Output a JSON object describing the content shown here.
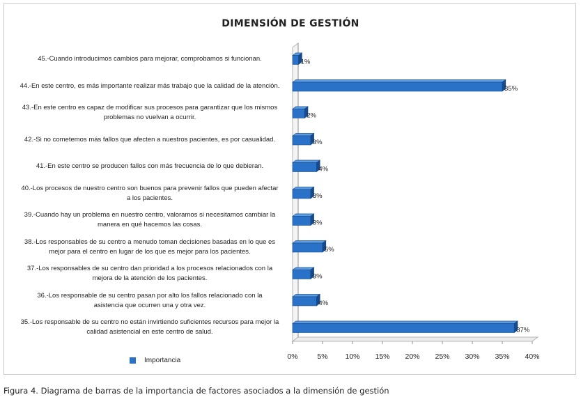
{
  "caption": "Figura 4. Diagrama de barras de la importancia de factores asociados a la dimensión de gestión",
  "chart_data": {
    "type": "bar",
    "orientation": "horizontal",
    "title": "DIMENSIÓN DE GESTIÓN",
    "categories": [
      "45.-Cuando introducimos cambios para mejorar, comprobamos si funcionan.",
      "44.-En este centro, es más importante realizar más trabajo que la calidad de la atención.",
      "43.-En este centro es capaz de modificar sus procesos para garantizar que los mismos problemas no vuelvan a ocurrir.",
      "42.-Si no cometemos más fallos que afecten a nuestros pacientes, es por casualidad.",
      "41.-En este centro se producen fallos con más frecuencia de lo que debieran.",
      "40.-Los procesos de nuestro centro son buenos para prevenir fallos que pueden afectar a los pacientes.",
      "39.-Cuando hay un problema en nuestro centro, valoramos si necesitamos cambiar la manera en qué hacemos las cosas.",
      "38.-Los responsables de su centro a menudo toman decisiones basadas en lo que es mejor para el centro en lugar de los que es mejor para los pacientes.",
      "37.-Los responsables de su centro dan prioridad a los procesos relacionados con la mejora de la atención de los pacientes.",
      "36.-Los responsable de su centro pasan por alto los fallos relacionado con la asistencia que ocurren una y otra vez.",
      "35.-Los responsable de su centro no están invirtiendo suficientes recursos para mejor la calidad asistencial en este centro de salud."
    ],
    "category_lines": [
      [
        "45.-Cuando introducimos cambios para mejorar, comprobamos si funcionan."
      ],
      [
        "44.-En este centro, es más importante realizar más trabajo que la calidad de la atención."
      ],
      [
        "43.-En este centro es capaz de modificar sus procesos para garantizar que los mismos",
        "problemas no vuelvan a ocurrir."
      ],
      [
        "42.-Si no cometemos más fallos que afecten a nuestros pacientes, es por casualidad."
      ],
      [
        "41.-En este centro se producen fallos con más frecuencia de lo que debieran."
      ],
      [
        "40.-Los procesos de nuestro centro son buenos para prevenir fallos que pueden afectar",
        "a los pacientes."
      ],
      [
        "39.-Cuando hay un problema en nuestro centro, valoramos si necesitamos cambiar la",
        "manera en qué hacemos las cosas."
      ],
      [
        "38.-Los responsables de su centro a menudo toman decisiones basadas en lo que es",
        "mejor para el centro en lugar de los que es mejor para los pacientes."
      ],
      [
        "37.-Los responsables de su centro dan prioridad a los procesos relacionados con la",
        "mejora de la atención de los pacientes."
      ],
      [
        "36.-Los responsable de su centro pasan por alto los fallos relacionado con la",
        "asistencia que ocurren una y otra vez."
      ],
      [
        "35.-Los responsable de su centro no están invirtiendo suficientes recursos para mejor la",
        "calidad asistencial en este centro de salud."
      ]
    ],
    "series": [
      {
        "name": "Importancia",
        "values": [
          1,
          35,
          2,
          3,
          4,
          3,
          3,
          5,
          3,
          4,
          37
        ]
      }
    ],
    "data_labels": [
      "1%",
      "35%",
      "2%",
      "3%",
      "4%",
      "3%",
      "3%",
      "5%",
      "3%",
      "4%",
      "37%"
    ],
    "x_ticks": [
      "0%",
      "5%",
      "10%",
      "15%",
      "20%",
      "25%",
      "30%",
      "35%",
      "40%"
    ],
    "xlim": [
      0,
      40
    ],
    "grid": false,
    "legend_position": "bottom-left",
    "colors": {
      "bar": "#2a72c8",
      "bar_top": "#5b9be0",
      "bar_dark": "#174a8a",
      "axis": "#8c8c8c",
      "wall": "#b5b5b5"
    }
  }
}
